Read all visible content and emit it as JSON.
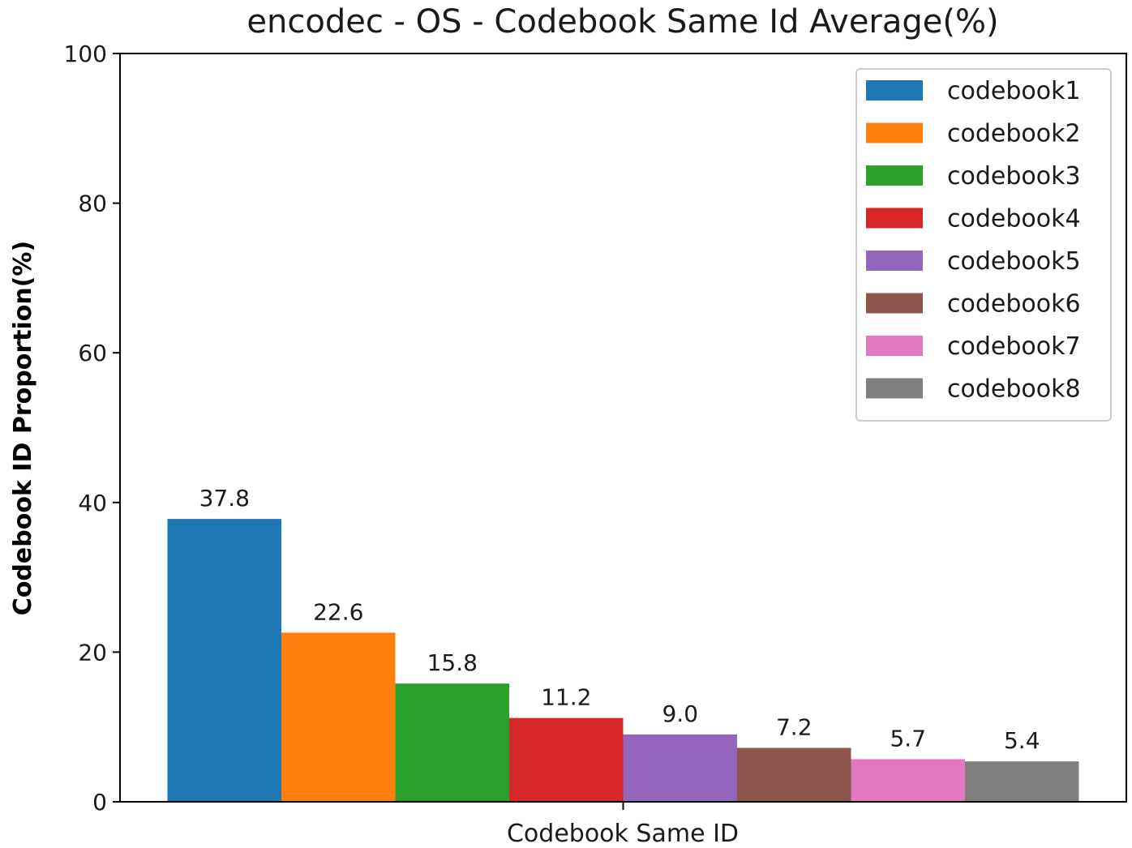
{
  "chart_data": {
    "type": "bar",
    "title": "encodec - OS - Codebook Same Id Average(%)",
    "xlabel": "Codebook Same ID",
    "ylabel": "Codebook ID Proportion(%)",
    "ylim": [
      0,
      100
    ],
    "yticks": [
      0,
      20,
      40,
      60,
      80,
      100
    ],
    "grid": false,
    "legend_position": "top-right",
    "categories": [
      ""
    ],
    "series": [
      {
        "name": "codebook1",
        "color": "#1f77b4",
        "values": [
          37.8
        ],
        "label": "37.8"
      },
      {
        "name": "codebook2",
        "color": "#ff7f0e",
        "values": [
          22.6
        ],
        "label": "22.6"
      },
      {
        "name": "codebook3",
        "color": "#2ca02c",
        "values": [
          15.8
        ],
        "label": "15.8"
      },
      {
        "name": "codebook4",
        "color": "#d62728",
        "values": [
          11.2
        ],
        "label": "11.2"
      },
      {
        "name": "codebook5",
        "color": "#9467bd",
        "values": [
          9.0
        ],
        "label": "9.0"
      },
      {
        "name": "codebook6",
        "color": "#8c564b",
        "values": [
          7.2
        ],
        "label": "7.2"
      },
      {
        "name": "codebook7",
        "color": "#e377c2",
        "values": [
          5.7
        ],
        "label": "5.7"
      },
      {
        "name": "codebook8",
        "color": "#7f7f7f",
        "values": [
          5.4
        ],
        "label": "5.4"
      }
    ]
  }
}
